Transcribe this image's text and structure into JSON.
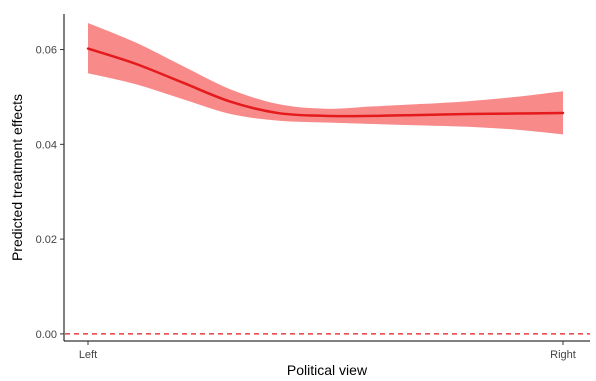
{
  "chart_data": {
    "type": "line",
    "xlabel": "Political view",
    "ylabel": "Predicted treatment effects",
    "x_tick_labels": [
      {
        "label": "Left",
        "x": 0
      },
      {
        "label": "Right",
        "x": 1
      }
    ],
    "x_range": [
      0,
      1
    ],
    "ylim": [
      -0.0015,
      0.0675
    ],
    "y_ticks": [
      0.0,
      0.02,
      0.04,
      0.06
    ],
    "y_tick_labels": [
      "0.00",
      "0.02",
      "0.04",
      "0.06"
    ],
    "grid": false,
    "reference_line": {
      "y": 0.0,
      "style": "dashed",
      "color": "#e41a1c"
    },
    "series": [
      {
        "color": "#e41a1c",
        "band_color": "#f88a8a",
        "x": [
          0.0,
          0.1,
          0.2,
          0.3,
          0.4,
          0.5,
          0.6,
          0.7,
          0.8,
          0.9,
          1.0
        ],
        "y": [
          0.0602,
          0.057,
          0.053,
          0.049,
          0.0466,
          0.046,
          0.046,
          0.0462,
          0.0464,
          0.0465,
          0.0466
        ],
        "lower": [
          0.055,
          0.0527,
          0.0495,
          0.0464,
          0.045,
          0.0446,
          0.0443,
          0.044,
          0.0437,
          0.0431,
          0.0421
        ],
        "upper": [
          0.0656,
          0.0615,
          0.0565,
          0.0516,
          0.0485,
          0.0475,
          0.048,
          0.0485,
          0.0491,
          0.05,
          0.0512
        ]
      }
    ]
  }
}
